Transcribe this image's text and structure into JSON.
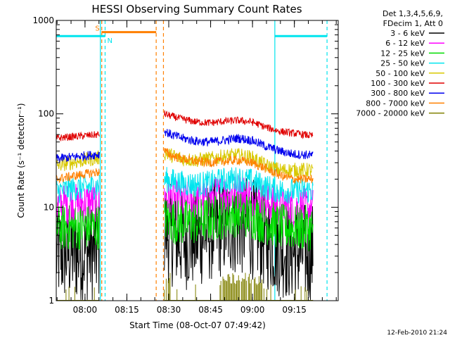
{
  "chart_data": {
    "type": "line",
    "title": "HESSI Observing Summary Count Rates",
    "xlabel": "Start Time (08-Oct-07 07:49:42)",
    "ylabel": "Count Rate (s⁻¹ detector⁻¹)",
    "x_ticks": [
      "08:00",
      "08:15",
      "08:30",
      "08:45",
      "09:00",
      "09:15"
    ],
    "y_ticks": [
      "1",
      "10",
      "100",
      "1000"
    ],
    "xlim_minutes_after_start": [
      0,
      101
    ],
    "ylim": [
      1,
      1000
    ],
    "y_scale": "log",
    "legend": {
      "position": "right-outside",
      "header": [
        "Det 1,3,4,5,6,9,",
        "FDecim 1, Att 0"
      ],
      "entries": [
        {
          "label": "3 - 6 keV",
          "color": "#000000"
        },
        {
          "label": "6 - 12 keV",
          "color": "#ff00ff"
        },
        {
          "label": "12 - 25 keV",
          "color": "#00dd00"
        },
        {
          "label": "25 - 50 keV",
          "color": "#00e5ee"
        },
        {
          "label": "50 - 100 keV",
          "color": "#d8c800"
        },
        {
          "label": "100 - 300 keV",
          "color": "#e00000"
        },
        {
          "label": "300 - 800 keV",
          "color": "#0000ee"
        },
        {
          "label": "800 - 7000 keV",
          "color": "#ff8000"
        },
        {
          "label": "7000 - 20000 keV",
          "color": "#808000"
        }
      ]
    },
    "segment_minutes": [
      [
        0,
        15.5
      ],
      [
        38.7,
        92
      ]
    ],
    "series": [
      {
        "name": "3 - 6 keV",
        "color": "#000000",
        "noise": 0.55,
        "values": [
          [
            0,
            3.2
          ],
          [
            15.5,
            3.4
          ],
          [
            38.7,
            6
          ],
          [
            41,
            5
          ],
          [
            45,
            4.5
          ],
          [
            50,
            4.6
          ],
          [
            55,
            5.5
          ],
          [
            60,
            6.2
          ],
          [
            65,
            6.5
          ],
          [
            70,
            6
          ],
          [
            75,
            4.5
          ],
          [
            80,
            3.8
          ],
          [
            85,
            3.3
          ],
          [
            92,
            3.2
          ]
        ]
      },
      {
        "name": "6 - 12 keV",
        "color": "#ff00ff",
        "noise": 0.22,
        "values": [
          [
            0,
            10.5
          ],
          [
            15.5,
            11.5
          ],
          [
            38.7,
            13
          ],
          [
            45,
            11.5
          ],
          [
            50,
            11.5
          ],
          [
            55,
            12.5
          ],
          [
            60,
            14
          ],
          [
            65,
            14.5
          ],
          [
            70,
            13
          ],
          [
            75,
            11
          ],
          [
            80,
            10
          ],
          [
            85,
            9.8
          ],
          [
            92,
            9.8
          ]
        ]
      },
      {
        "name": "12 - 25 keV",
        "color": "#00dd00",
        "noise": 0.25,
        "values": [
          [
            0,
            6
          ],
          [
            15.5,
            6.2
          ],
          [
            38.7,
            7.5
          ],
          [
            45,
            6.8
          ],
          [
            50,
            7
          ],
          [
            55,
            7.5
          ],
          [
            60,
            8
          ],
          [
            65,
            8.5
          ],
          [
            70,
            8
          ],
          [
            75,
            7
          ],
          [
            80,
            6.2
          ],
          [
            85,
            6
          ],
          [
            92,
            6
          ]
        ]
      },
      {
        "name": "25 - 50 keV",
        "color": "#00e5ee",
        "noise": 0.14,
        "values": [
          [
            0,
            15
          ],
          [
            15.5,
            17
          ],
          [
            38.7,
            20
          ],
          [
            45,
            18
          ],
          [
            50,
            17.5
          ],
          [
            55,
            18
          ],
          [
            60,
            19.5
          ],
          [
            65,
            20
          ],
          [
            70,
            19
          ],
          [
            75,
            16.5
          ],
          [
            80,
            15
          ],
          [
            85,
            15
          ],
          [
            92,
            15
          ]
        ]
      },
      {
        "name": "50 - 100 keV",
        "color": "#d8c800",
        "noise": 0.08,
        "values": [
          [
            0,
            28
          ],
          [
            15.5,
            34
          ],
          [
            38.7,
            38
          ],
          [
            45,
            33
          ],
          [
            50,
            32
          ],
          [
            55,
            33
          ],
          [
            60,
            35
          ],
          [
            65,
            36
          ],
          [
            70,
            34
          ],
          [
            75,
            28
          ],
          [
            80,
            25
          ],
          [
            85,
            25
          ],
          [
            92,
            25
          ]
        ]
      },
      {
        "name": "100 - 300 keV",
        "color": "#e00000",
        "noise": 0.04,
        "values": [
          [
            0,
            55
          ],
          [
            15.5,
            60
          ],
          [
            38.7,
            100
          ],
          [
            41,
            95
          ],
          [
            45,
            88
          ],
          [
            50,
            82
          ],
          [
            55,
            80
          ],
          [
            60,
            83
          ],
          [
            65,
            85
          ],
          [
            70,
            82
          ],
          [
            75,
            72
          ],
          [
            80,
            65
          ],
          [
            85,
            62
          ],
          [
            92,
            58
          ]
        ]
      },
      {
        "name": "300 - 800 keV",
        "color": "#0000ee",
        "noise": 0.05,
        "values": [
          [
            0,
            33
          ],
          [
            15.5,
            37
          ],
          [
            38.7,
            66
          ],
          [
            41,
            60
          ],
          [
            45,
            55
          ],
          [
            50,
            51
          ],
          [
            55,
            50
          ],
          [
            60,
            52
          ],
          [
            65,
            55
          ],
          [
            70,
            52
          ],
          [
            75,
            45
          ],
          [
            80,
            40
          ],
          [
            85,
            37
          ],
          [
            92,
            36
          ]
        ]
      },
      {
        "name": "800 - 7000 keV",
        "color": "#ff8000",
        "noise": 0.05,
        "values": [
          [
            0,
            20
          ],
          [
            15.5,
            24
          ],
          [
            38.7,
            40
          ],
          [
            41,
            36
          ],
          [
            45,
            33
          ],
          [
            50,
            31
          ],
          [
            55,
            30
          ],
          [
            60,
            31
          ],
          [
            65,
            32
          ],
          [
            70,
            30
          ],
          [
            75,
            26
          ],
          [
            80,
            22
          ],
          [
            85,
            20
          ],
          [
            92,
            20
          ]
        ]
      },
      {
        "name": "7000 - 20000 keV",
        "color": "#808000",
        "noise": 0,
        "values": [
          [
            0,
            1
          ],
          [
            92,
            1
          ]
        ]
      }
    ],
    "saa_flag_S": {
      "label": "S",
      "value": 750,
      "x_range": [
        16.2,
        35.8
      ],
      "color": "#ff8000"
    },
    "night_flag_N": {
      "label": "N",
      "value": 680,
      "x_ranges": [
        [
          0,
          17.5
        ],
        [
          78.3,
          97
        ]
      ],
      "color": "#00e5ee"
    },
    "vertical_markers": [
      {
        "x": 15.8,
        "color": "#00e5ee",
        "style": "solid"
      },
      {
        "x": 17.5,
        "color": "#00e5ee",
        "style": "dashed"
      },
      {
        "x": 16.3,
        "color": "#ff8000",
        "style": "dashed"
      },
      {
        "x": 35.8,
        "color": "#ff8000",
        "style": "dashed"
      },
      {
        "x": 38.4,
        "color": "#ff8000",
        "style": "dashed"
      },
      {
        "x": 78.3,
        "color": "#00e5ee",
        "style": "solid"
      },
      {
        "x": 97,
        "color": "#00e5ee",
        "style": "dashed"
      }
    ],
    "date_stamp": "12-Feb-2010 21:24"
  }
}
